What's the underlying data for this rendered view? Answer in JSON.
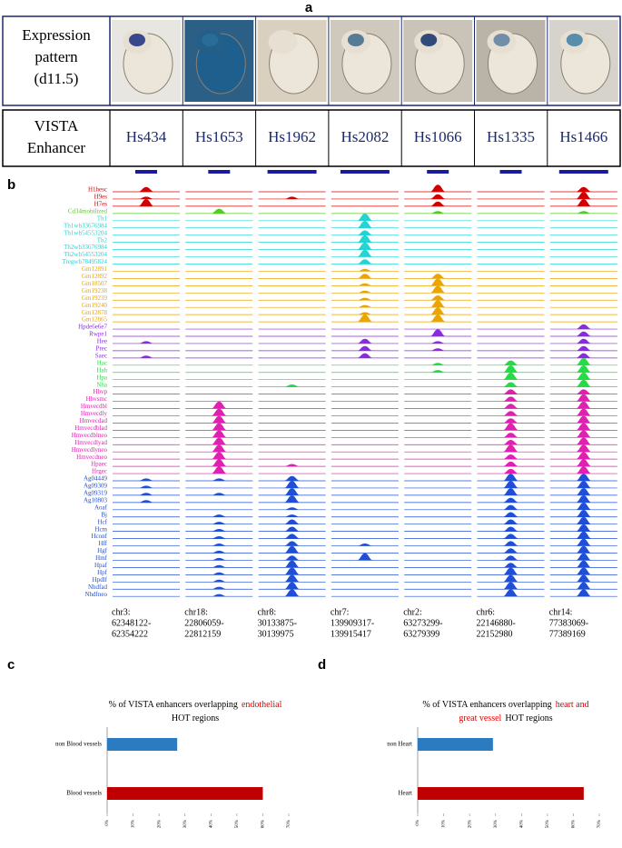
{
  "panel_a": {
    "label": "a",
    "row1_label": [
      "Expression",
      "pattern",
      "(d11.5)"
    ],
    "row2_label": [
      "VISTA",
      "Enhancer"
    ],
    "enhancers": [
      "Hs434",
      "Hs1653",
      "Hs1962",
      "Hs2082",
      "Hs1066",
      "Hs1335",
      "Hs1466"
    ]
  },
  "panel_b": {
    "label": "b",
    "groups": [
      {
        "color": "#d40000",
        "tracks": [
          {
            "name": "H1hesc",
            "signal": [
              2,
              0,
              0,
              0,
              3,
              0,
              2
            ]
          },
          {
            "name": "H9es",
            "signal": [
              1,
              0,
              1,
              0,
              2,
              0,
              3
            ]
          },
          {
            "name": "H7es",
            "signal": [
              3,
              0,
              0,
              0,
              2,
              0,
              3
            ]
          }
        ]
      },
      {
        "color": "#55cc22",
        "tracks": [
          {
            "name": "Cd34mobilized",
            "signal": [
              0,
              2,
              0,
              0,
              1,
              0,
              1
            ]
          }
        ]
      },
      {
        "color": "#22d4d4",
        "tracks": [
          {
            "name": "Th1",
            "signal": [
              0,
              0,
              0,
              3,
              0,
              0,
              0
            ]
          },
          {
            "name": "Th1wb33676984",
            "signal": [
              0,
              0,
              0,
              3,
              0,
              0,
              0
            ]
          },
          {
            "name": "Th1wb54553204",
            "signal": [
              0,
              0,
              0,
              2,
              0,
              0,
              0
            ]
          },
          {
            "name": "Th2",
            "signal": [
              0,
              0,
              0,
              3,
              0,
              0,
              0
            ]
          },
          {
            "name": "Th2wb33676984",
            "signal": [
              0,
              0,
              0,
              3,
              0,
              0,
              0
            ]
          },
          {
            "name": "Th2wb54553204",
            "signal": [
              0,
              0,
              0,
              3,
              0,
              0,
              0
            ]
          },
          {
            "name": "Tregwb78495824",
            "signal": [
              0,
              0,
              0,
              2,
              0,
              0,
              0
            ]
          }
        ]
      },
      {
        "color": "#eba400",
        "tracks": [
          {
            "name": "Gm12891",
            "signal": [
              0,
              0,
              0,
              1,
              0,
              0,
              0
            ]
          },
          {
            "name": "Gm12892",
            "signal": [
              0,
              0,
              0,
              2,
              2,
              0,
              0
            ]
          },
          {
            "name": "Gm18507",
            "signal": [
              0,
              0,
              0,
              1,
              3,
              0,
              0
            ]
          },
          {
            "name": "Gm19238",
            "signal": [
              0,
              0,
              0,
              1,
              3,
              0,
              0
            ]
          },
          {
            "name": "Gm19239",
            "signal": [
              0,
              0,
              0,
              1,
              2,
              0,
              0
            ]
          },
          {
            "name": "Gm19240",
            "signal": [
              0,
              0,
              0,
              1,
              3,
              0,
              0
            ]
          },
          {
            "name": "Gm12878",
            "signal": [
              0,
              0,
              0,
              1,
              3,
              0,
              0
            ]
          },
          {
            "name": "Gm12865",
            "signal": [
              0,
              0,
              0,
              3,
              3,
              0,
              0
            ]
          }
        ]
      },
      {
        "color": "#8a2be2",
        "tracks": [
          {
            "name": "Hpde6e6e7",
            "signal": [
              0,
              0,
              0,
              0,
              0,
              0,
              2
            ]
          },
          {
            "name": "Rwpe1",
            "signal": [
              0,
              0,
              0,
              0,
              3,
              0,
              2
            ]
          },
          {
            "name": "Hee",
            "signal": [
              1,
              0,
              0,
              2,
              1,
              0,
              2
            ]
          },
          {
            "name": "Prec",
            "signal": [
              0,
              0,
              0,
              2,
              1,
              0,
              2
            ]
          },
          {
            "name": "Saec",
            "signal": [
              1,
              0,
              0,
              2,
              0,
              0,
              2
            ]
          }
        ]
      },
      {
        "color": "#22dd44",
        "tracks": [
          {
            "name": "Hac",
            "signal": [
              0,
              0,
              0,
              0,
              1,
              2,
              3
            ]
          },
          {
            "name": "Hah",
            "signal": [
              0,
              0,
              0,
              0,
              1,
              3,
              3
            ]
          },
          {
            "name": "Hpa",
            "signal": [
              0,
              0,
              0,
              0,
              0,
              3,
              3
            ]
          },
          {
            "name": "Nha",
            "signal": [
              0,
              0,
              1,
              0,
              0,
              2,
              3
            ]
          }
        ]
      },
      {
        "color": "#e020b0",
        "tracks": [
          {
            "name": "Hbvp",
            "signal": [
              0,
              0,
              0,
              0,
              0,
              2,
              2
            ]
          },
          {
            "name": "Hbvsmc",
            "signal": [
              0,
              0,
              0,
              0,
              0,
              2,
              3
            ]
          },
          {
            "name": "Hmvecdbl",
            "signal": [
              0,
              3,
              0,
              0,
              0,
              2,
              3
            ]
          },
          {
            "name": "Hmvecdly",
            "signal": [
              0,
              3,
              0,
              0,
              0,
              2,
              3
            ]
          },
          {
            "name": "Hmvecdad",
            "signal": [
              0,
              3,
              0,
              0,
              0,
              2,
              3
            ]
          },
          {
            "name": "Hmvecdblad",
            "signal": [
              0,
              3,
              0,
              0,
              0,
              3,
              3
            ]
          },
          {
            "name": "Hmvecdblneo",
            "signal": [
              0,
              3,
              0,
              0,
              0,
              2,
              3
            ]
          },
          {
            "name": "Hmvecdlyad",
            "signal": [
              0,
              3,
              0,
              0,
              0,
              2,
              3
            ]
          },
          {
            "name": "Hmvecdlyneo",
            "signal": [
              0,
              3,
              0,
              0,
              0,
              3,
              3
            ]
          },
          {
            "name": "Hmvecdneo",
            "signal": [
              0,
              3,
              0,
              0,
              0,
              2,
              3
            ]
          },
          {
            "name": "Hpaec",
            "signal": [
              0,
              3,
              1,
              0,
              0,
              2,
              3
            ]
          },
          {
            "name": "Hrgec",
            "signal": [
              0,
              3,
              0,
              0,
              0,
              2,
              3
            ]
          }
        ]
      },
      {
        "color": "#1f4fd8",
        "tracks": [
          {
            "name": "Ag04449",
            "signal": [
              1,
              1,
              2,
              0,
              0,
              3,
              3
            ]
          },
          {
            "name": "Ag09309",
            "signal": [
              1,
              0,
              3,
              0,
              0,
              3,
              3
            ]
          },
          {
            "name": "Ag09319",
            "signal": [
              1,
              1,
              3,
              0,
              0,
              3,
              3
            ]
          },
          {
            "name": "Ag10803",
            "signal": [
              1,
              0,
              3,
              0,
              0,
              2,
              3
            ]
          },
          {
            "name": "Aoaf",
            "signal": [
              0,
              0,
              1,
              0,
              0,
              2,
              3
            ]
          },
          {
            "name": "Bj",
            "signal": [
              0,
              1,
              1,
              0,
              0,
              2,
              3
            ]
          },
          {
            "name": "Hcf",
            "signal": [
              0,
              1,
              2,
              0,
              0,
              2,
              3
            ]
          },
          {
            "name": "Hcm",
            "signal": [
              0,
              1,
              2,
              0,
              0,
              2,
              3
            ]
          },
          {
            "name": "Hconf",
            "signal": [
              0,
              1,
              2,
              0,
              0,
              2,
              3
            ]
          },
          {
            "name": "Hff",
            "signal": [
              0,
              1,
              2,
              1,
              0,
              2,
              3
            ]
          },
          {
            "name": "Hgf",
            "signal": [
              0,
              1,
              3,
              0,
              0,
              2,
              3
            ]
          },
          {
            "name": "Hmf",
            "signal": [
              0,
              1,
              2,
              3,
              0,
              2,
              3
            ]
          },
          {
            "name": "Hpaf",
            "signal": [
              0,
              1,
              3,
              0,
              0,
              2,
              3
            ]
          },
          {
            "name": "Hpf",
            "signal": [
              0,
              1,
              3,
              0,
              0,
              3,
              3
            ]
          },
          {
            "name": "Hpdlf",
            "signal": [
              0,
              1,
              3,
              0,
              0,
              3,
              3
            ]
          },
          {
            "name": "Nhdfad",
            "signal": [
              0,
              1,
              3,
              0,
              0,
              3,
              3
            ]
          },
          {
            "name": "Nhdfneo",
            "signal": [
              0,
              1,
              3,
              0,
              0,
              3,
              3
            ]
          }
        ]
      }
    ],
    "coordinates": [
      [
        "chr3:",
        "62348122-",
        "62354222"
      ],
      [
        "chr18:",
        "22806059-",
        "22812159"
      ],
      [
        "chr8:",
        "30133875-",
        "30139975"
      ],
      [
        "chr7:",
        "139909317-",
        "139915417"
      ],
      [
        "chr2:",
        "63273299-",
        "63279399"
      ],
      [
        "chr6:",
        "22146880-",
        "22152980"
      ],
      [
        "chr14:",
        "77383069-",
        "77389169"
      ]
    ]
  },
  "chart_data": [
    {
      "type": "bar",
      "label": "c",
      "title_lines": [
        [
          {
            "text": "% of VISTA enhancers overlapping",
            "color": "#000"
          },
          {
            "text": "endothelial",
            "color": "#e00000"
          }
        ],
        [
          {
            "text": "HOT regions",
            "color": "#000"
          }
        ]
      ],
      "categories": [
        "non Blood vessels",
        "Blood vessels"
      ],
      "values": [
        27,
        60
      ],
      "colors": [
        "#2a7bc0",
        "#c00000"
      ],
      "xlim": [
        0,
        70
      ],
      "xticks": [
        {
          "value": 0,
          "label": "0%"
        },
        {
          "value": 10,
          "label": "10%"
        },
        {
          "value": 20,
          "label": "20%"
        },
        {
          "value": 30,
          "label": "30%"
        },
        {
          "value": 40,
          "label": "40%"
        },
        {
          "value": 50,
          "label": "50%"
        },
        {
          "value": 60,
          "label": "60%"
        },
        {
          "value": 70,
          "label": "70%"
        }
      ]
    },
    {
      "type": "bar",
      "label": "d",
      "title_lines": [
        [
          {
            "text": "% of VISTA enhancers overlapping",
            "color": "#000"
          },
          {
            "text": "heart and",
            "color": "#e00000"
          }
        ],
        [
          {
            "text": "great vessel",
            "color": "#e00000"
          },
          {
            "text": "HOT regions",
            "color": "#000"
          }
        ]
      ],
      "categories": [
        "non Heart",
        "Heart"
      ],
      "values": [
        29,
        64
      ],
      "colors": [
        "#2a7bc0",
        "#c00000"
      ],
      "xlim": [
        0,
        70
      ],
      "xticks": [
        {
          "value": 0,
          "label": "0%"
        },
        {
          "value": 10,
          "label": "10%"
        },
        {
          "value": 20,
          "label": "20%"
        },
        {
          "value": 30,
          "label": "30%"
        },
        {
          "value": 40,
          "label": "40%"
        },
        {
          "value": 50,
          "label": "50%"
        },
        {
          "value": 60,
          "label": "60%"
        },
        {
          "value": 70,
          "label": "70%"
        }
      ]
    }
  ]
}
